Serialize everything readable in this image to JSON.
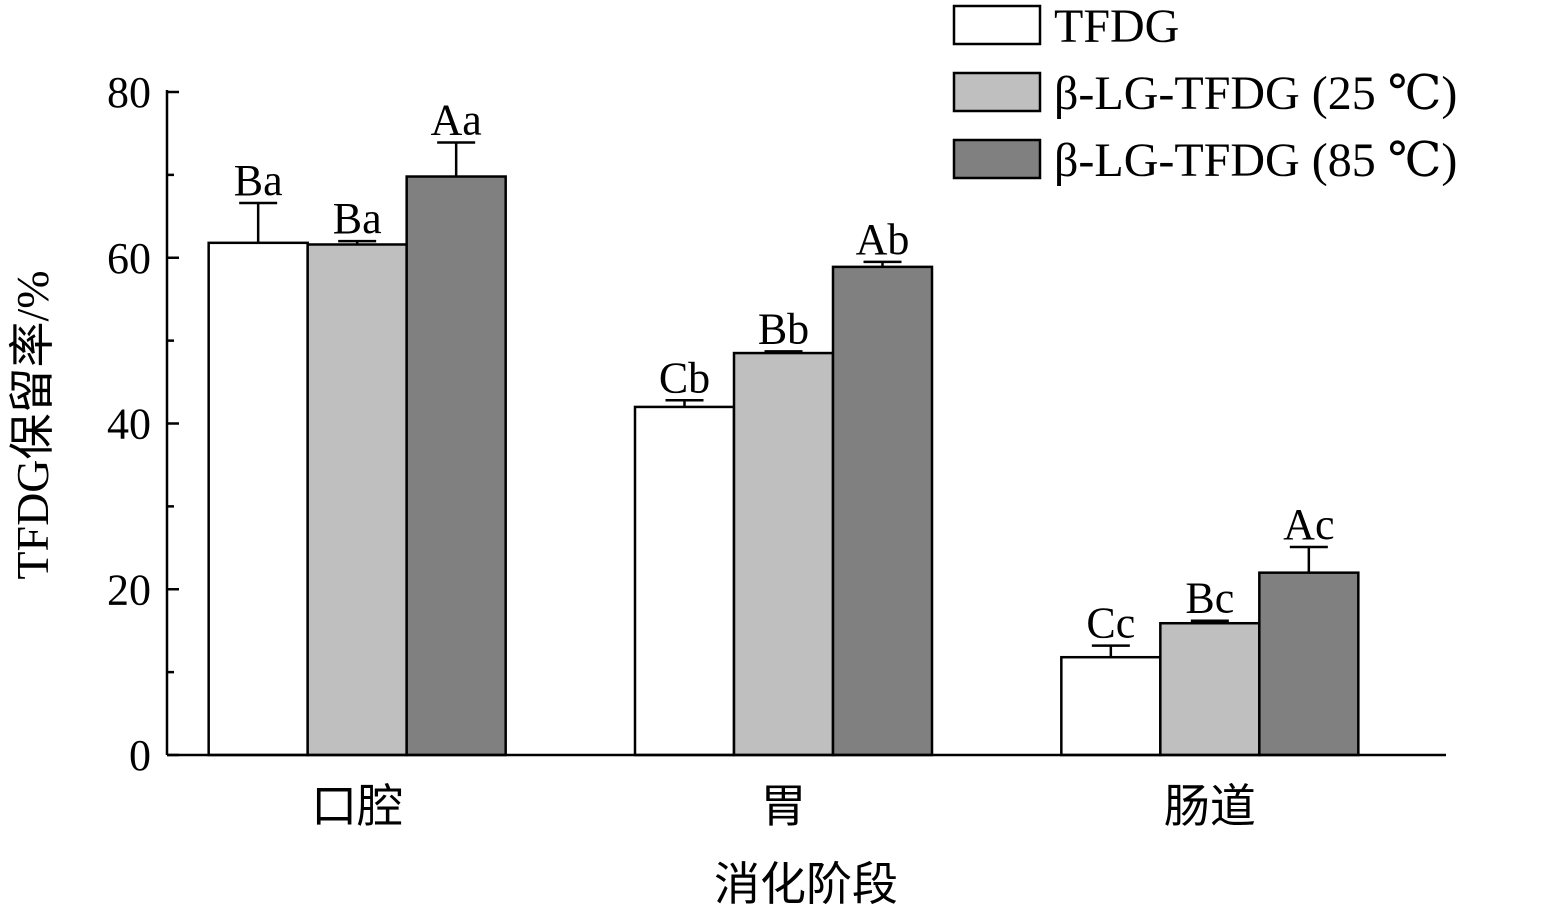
{
  "chart_data": {
    "type": "bar",
    "title": "",
    "xlabel": "消化阶段",
    "ylabel": "TFDG保留率/%",
    "categories": [
      "口腔",
      "胃",
      "肠道"
    ],
    "ylim": [
      0,
      80
    ],
    "yticks": [
      0,
      20,
      40,
      60,
      80
    ],
    "grid": false,
    "legend_position": "top-right",
    "series": [
      {
        "name": "TFDG",
        "color": "#ffffff",
        "values": [
          61.8,
          42.0,
          11.8
        ],
        "errors": [
          4.8,
          0.8,
          1.4
        ],
        "labels": [
          "Ba",
          "Cb",
          "Cc"
        ]
      },
      {
        "name": "β-LG-TFDG (25 ℃)",
        "color": "#bfbfbf",
        "values": [
          61.6,
          48.5,
          15.9
        ],
        "errors": [
          0.4,
          0.2,
          0.3
        ],
        "labels": [
          "Ba",
          "Bb",
          "Bc"
        ]
      },
      {
        "name": "β-LG-TFDG (85 ℃)",
        "color": "#808080",
        "values": [
          69.8,
          58.9,
          22.0
        ],
        "errors": [
          4.1,
          0.6,
          3.1
        ],
        "labels": [
          "Aa",
          "Ab",
          "Ac"
        ]
      }
    ]
  }
}
